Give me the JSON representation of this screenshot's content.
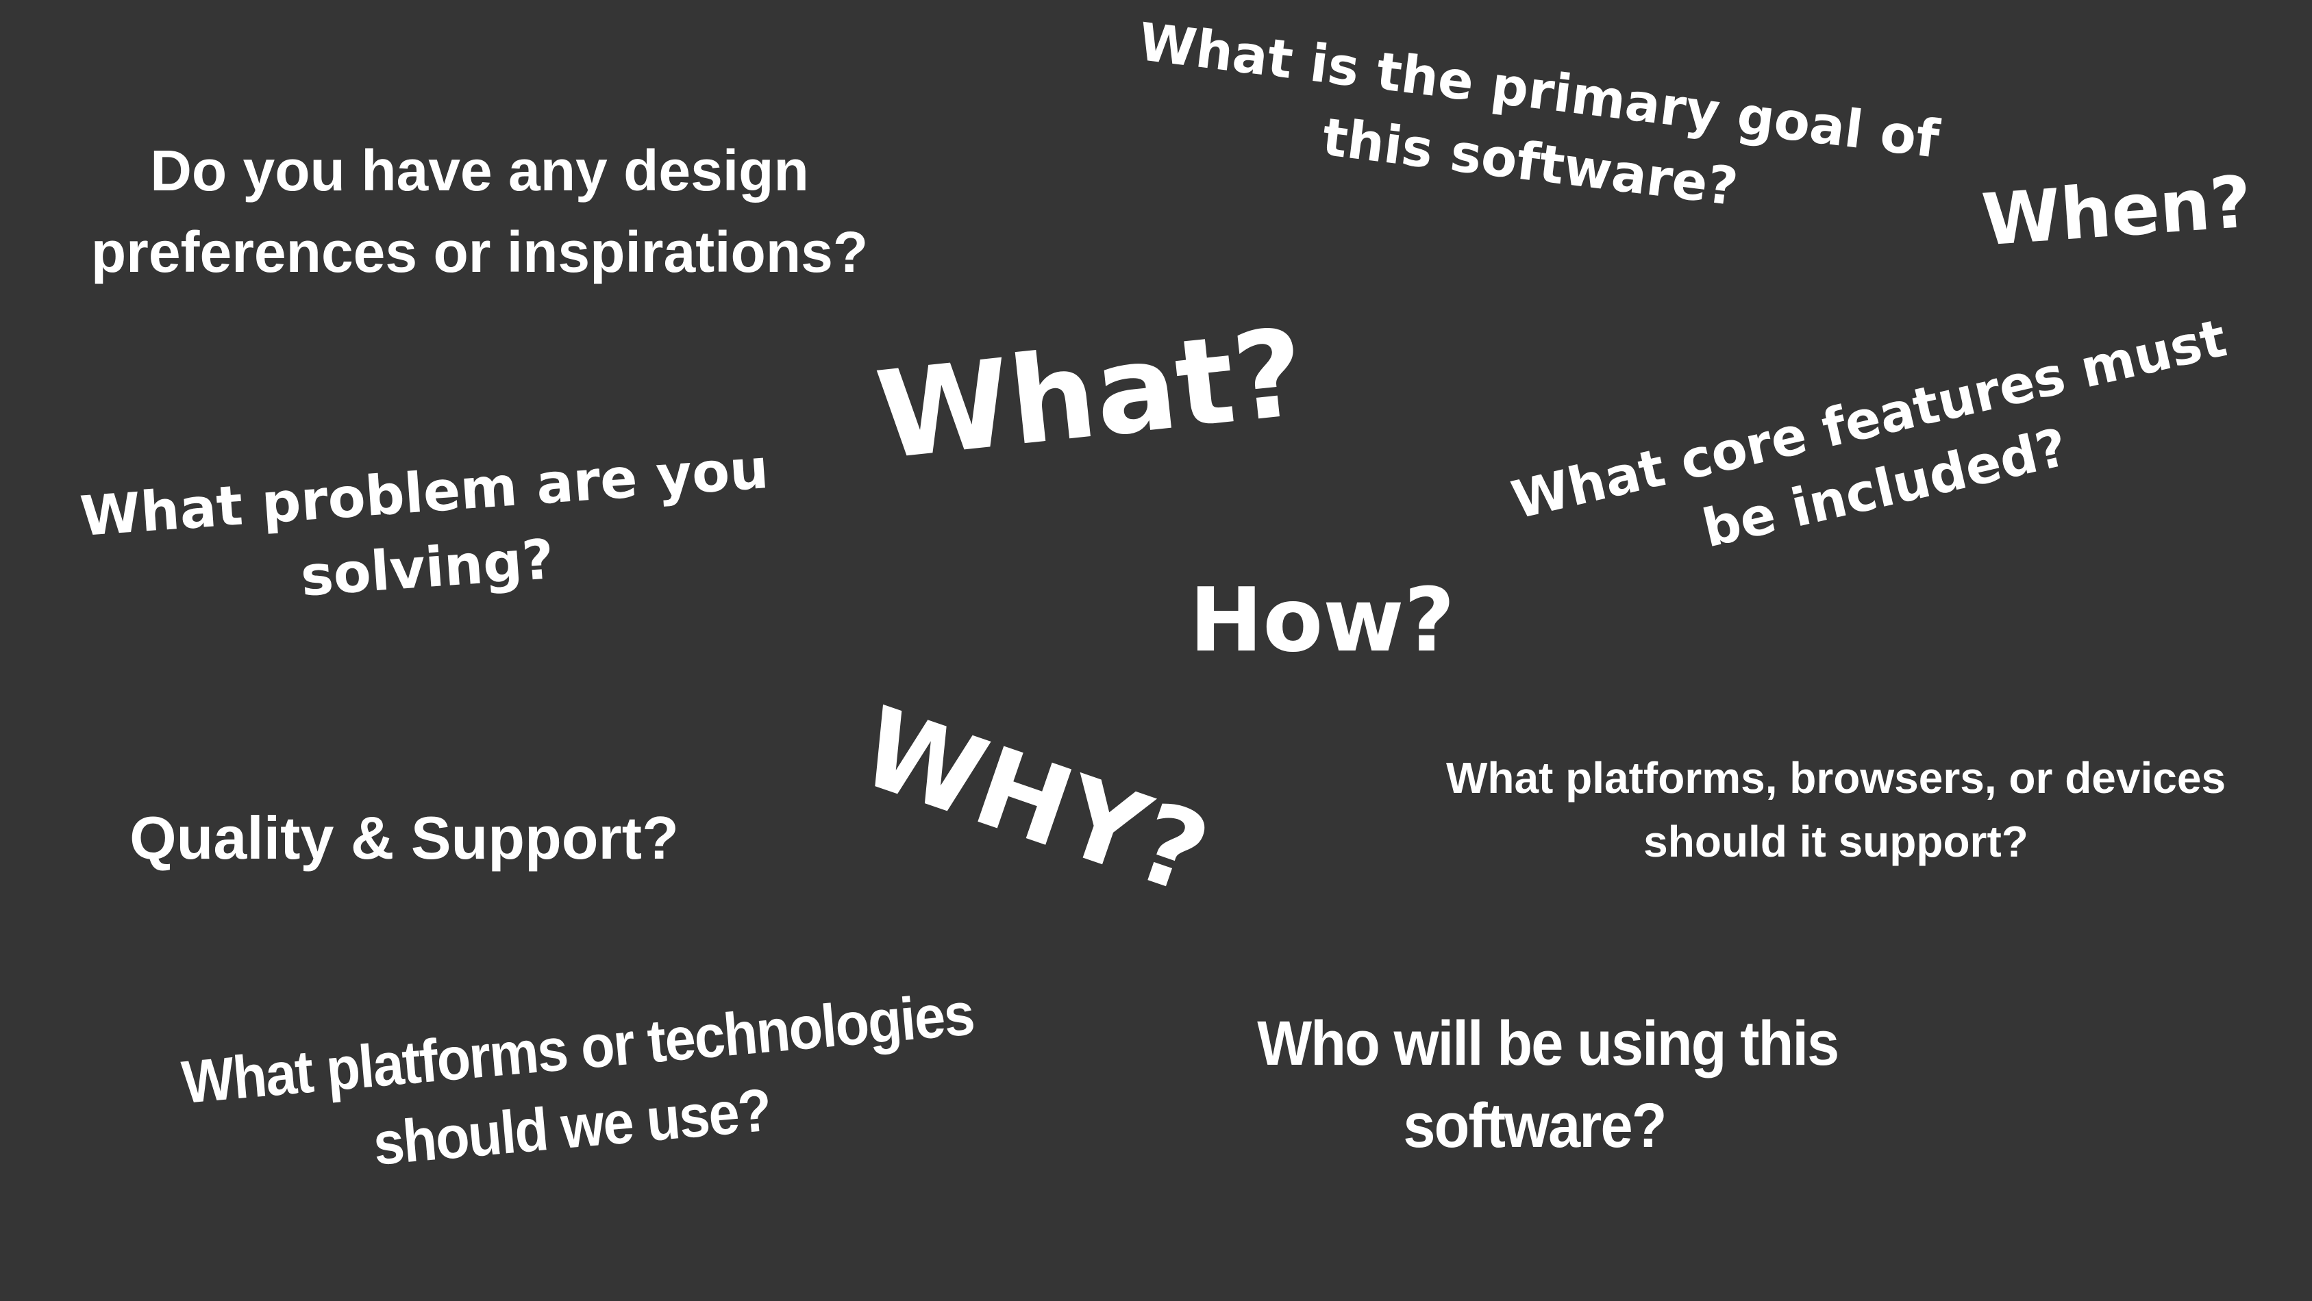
{
  "phrases": {
    "design": [
      "Do you have any design",
      "preferences or inspirations?"
    ],
    "goal": [
      "What is the primary goal of",
      "this software?"
    ],
    "when": "When?",
    "what": "What?",
    "problem": [
      "What problem are you",
      "solving?"
    ],
    "features": [
      "What core features must",
      "be included?"
    ],
    "how": "How?",
    "why": "WHY?",
    "quality": "Quality & Support?",
    "platforms_devices": [
      "What platforms, browsers, or devices",
      "should it support?"
    ],
    "technologies": [
      "What platforms or technologies",
      "should we use?"
    ],
    "who": [
      "Who will be using this",
      "software?"
    ]
  },
  "colors": {
    "background": "#353535",
    "text": "#ffffff"
  }
}
